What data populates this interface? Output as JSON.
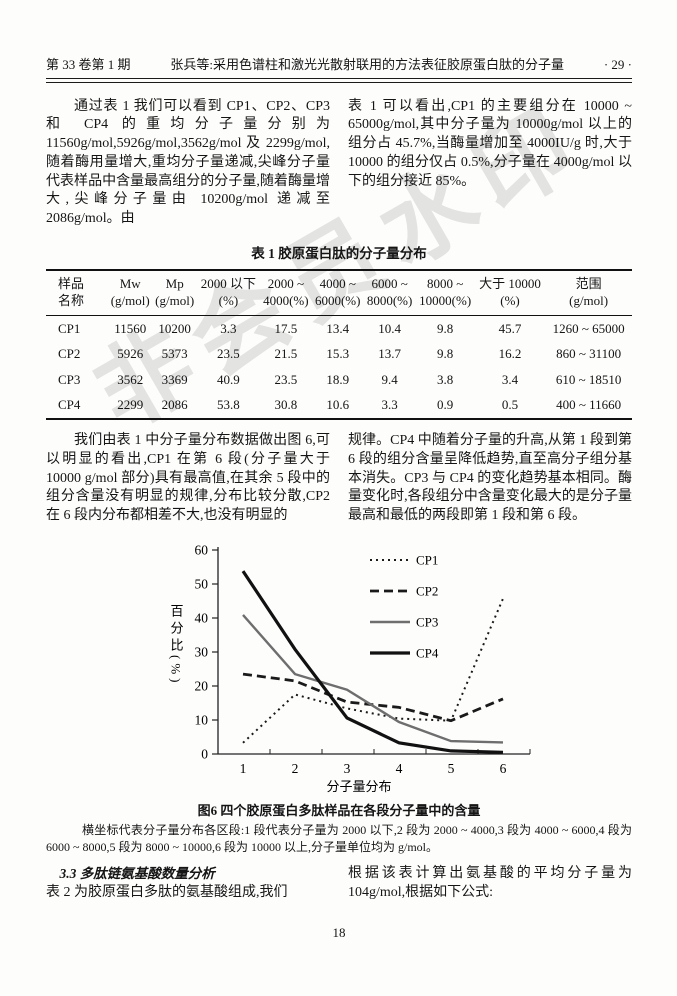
{
  "header": {
    "issue": "第 33 卷第 1 期",
    "title": "张兵等:采用色谱柱和激光光散射联用的方法表征胶原蛋白肽的分子量",
    "page_marker": "· 29 ·"
  },
  "paragraphs": {
    "p1_left": "通过表 1 我们可以看到 CP1、CP2、CP3 和 CP4 的重均分子量分别为 11560g/mol,5926g/mol,3562g/mol 及 2299g/mol,随着酶用量增大,重均分子量递减,尖峰分子量代表样品中含量最高组分的分子量,随着酶量增大,尖峰分子量由 10200g/mol 递减至 2086g/mol。由",
    "p1_right": "表 1 可以看出,CP1 的主要组分在 10000 ~ 65000g/mol,其中分子量为 10000g/mol 以上的组分占 45.7%,当酶量增加至 4000IU/g 时,大于 10000 的组分仅占 0.5%,分子量在 4000g/mol 以下的组分接近 85%。",
    "p2_left": "我们由表 1 中分子量分布数据做出图 6,可以明显的看出,CP1 在第 6 段(分子量大于 10000 g/mol 部分)具有最高值,在其余 5 段中的组分含量没有明显的规律,分布比较分散,CP2 在 6 段内分布都相差不大,也没有明显的",
    "p2_right": "规律。CP4 中随着分子量的升高,从第 1 段到第 6 段的组分含量呈降低趋势,直至高分子组分基本消失。CP3 与 CP4 的变化趋势基本相同。酶量变化时,各段组分中含量变化最大的是分子量最高和最低的两段即第 1 段和第 6 段。"
  },
  "table": {
    "title": "表 1   胶原蛋白肽的分子量分布",
    "headers": [
      [
        "样品",
        "名称"
      ],
      [
        "Mw",
        "(g/mol)"
      ],
      [
        "Mp",
        "(g/mol)"
      ],
      [
        "2000 以下",
        "(%)"
      ],
      [
        "2000 ~",
        "4000(%)"
      ],
      [
        "4000 ~",
        "6000(%)"
      ],
      [
        "6000 ~",
        "8000(%)"
      ],
      [
        "8000 ~",
        "10000(%)"
      ],
      [
        "大于 10000",
        "(%)"
      ],
      [
        "范围",
        "(g/mol)"
      ]
    ],
    "rows": [
      [
        "CP1",
        "11560",
        "10200",
        "3.3",
        "17.5",
        "13.4",
        "10.4",
        "9.8",
        "45.7",
        "1260 ~ 65000"
      ],
      [
        "CP2",
        "5926",
        "5373",
        "23.5",
        "21.5",
        "15.3",
        "13.7",
        "9.8",
        "16.2",
        "860 ~ 31100"
      ],
      [
        "CP3",
        "3562",
        "3369",
        "40.9",
        "23.5",
        "18.9",
        "9.4",
        "3.8",
        "3.4",
        "610 ~ 18510"
      ],
      [
        "CP4",
        "2299",
        "2086",
        "53.8",
        "30.8",
        "10.6",
        "3.3",
        "0.9",
        "0.5",
        "400 ~ 11660"
      ]
    ]
  },
  "chart_data": {
    "type": "line",
    "x": [
      1,
      2,
      3,
      4,
      5,
      6
    ],
    "series": [
      {
        "name": "CP1",
        "values": [
          3.3,
          17.5,
          13.4,
          10.4,
          9.8,
          45.7
        ],
        "style": "dotted",
        "color": "#1a1a1a"
      },
      {
        "name": "CP2",
        "values": [
          23.5,
          21.5,
          15.3,
          13.7,
          9.8,
          16.2
        ],
        "style": "dashed",
        "color": "#1a1a1a"
      },
      {
        "name": "CP3",
        "values": [
          40.9,
          23.5,
          18.9,
          9.4,
          3.8,
          3.4
        ],
        "style": "solid",
        "color": "#6e6e6e"
      },
      {
        "name": "CP4",
        "values": [
          53.8,
          30.8,
          10.6,
          3.3,
          0.9,
          0.5
        ],
        "style": "solid-thick",
        "color": "#111111"
      }
    ],
    "title": "图6  四个胶原蛋白多肽样品在各段分子量中的含量",
    "xlabel": "分子量分布",
    "ylabel": "百分比(%)",
    "ylim": [
      0,
      60
    ],
    "yticks": [
      0,
      10,
      20,
      30,
      40,
      50,
      60
    ],
    "legend_position": "top-right",
    "grid": false
  },
  "figure": {
    "caption": "图6   四个胶原蛋白多肽样品在各段分子量中的含量",
    "note": "横坐标代表分子量分布各区段:1 段代表分子量为 2000 以下,2 段为 2000 ~ 4000,3 段为 4000 ~ 6000,4 段为 6000 ~ 8000,5 段为 8000 ~ 10000,6 段为 10000 以上,分子量单位均为 g/mol。"
  },
  "section": {
    "heading": "3.3   多肽链氨基酸数量分析",
    "left_text": "表 2 为胶原蛋白多肽的氨基酸组成,我们",
    "right_text": "根据该表计算出氨基酸的平均分子量为 104g/mol,根据如下公式:"
  },
  "footer": {
    "page_number": "18"
  },
  "watermark": {
    "text": "非会员水印",
    "color": "#a8a8a8"
  }
}
